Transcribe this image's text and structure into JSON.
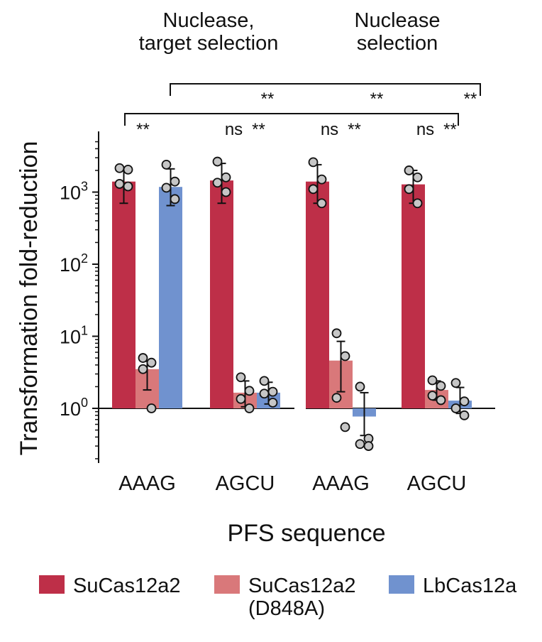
{
  "chart_data": {
    "type": "bar",
    "y_scale": "log",
    "ylim": [
      0.2,
      5000
    ],
    "ylabel": "Transformation fold-reduction",
    "xlabel": "PFS sequence",
    "yticks": [
      {
        "value": 1,
        "base": "10",
        "exp": "0"
      },
      {
        "value": 10,
        "base": "10",
        "exp": "1"
      },
      {
        "value": 100,
        "base": "10",
        "exp": "2"
      },
      {
        "value": 1000,
        "base": "10",
        "exp": "3"
      }
    ],
    "panels": [
      {
        "title_lines": [
          "Nuclease,",
          "target selection"
        ],
        "categories": [
          "AAAG",
          "AGCU"
        ]
      },
      {
        "title_lines": [
          "Nuclease",
          "selection"
        ],
        "categories": [
          "AAAG",
          "AGCU"
        ]
      }
    ],
    "colors": {
      "SuCas12a2": "#be2f48",
      "SuCas12a2 (D848A)": "#d9787a",
      "LbCas12a": "#7092cf"
    },
    "legend": [
      {
        "key": "SuCas12a2",
        "lines": [
          "SuCas12a2"
        ]
      },
      {
        "key": "SuCas12a2 (D848A)",
        "lines": [
          "SuCas12a2",
          "(D848A)"
        ]
      },
      {
        "key": "LbCas12a",
        "lines": [
          "LbCas12a"
        ]
      }
    ],
    "groups": [
      {
        "panel": 0,
        "category": "AAAG",
        "bars": [
          {
            "series": "SuCas12a2",
            "value": 1400,
            "err": [
              700,
              2000
            ],
            "points": [
              2150,
              2050,
              1300,
              1200
            ]
          },
          {
            "series": "SuCas12a2 (D848A)",
            "value": 3.5,
            "err": [
              1.8,
              4.5
            ],
            "points": [
              5.0,
              4.3,
              3.5,
              1.0
            ]
          },
          {
            "series": "LbCas12a",
            "value": 1180,
            "err": [
              650,
              2100
            ],
            "points": [
              2400,
              1400,
              1150,
              800
            ]
          }
        ],
        "sig": [
          "**"
        ]
      },
      {
        "panel": 0,
        "category": "AGCU",
        "bars": [
          {
            "series": "SuCas12a2",
            "value": 1450,
            "err": [
              700,
              2500
            ],
            "points": [
              2650,
              1600,
              1350,
              1000
            ]
          },
          {
            "series": "SuCas12a2 (D848A)",
            "value": 1.65,
            "err": [
              1.05,
              2.4
            ],
            "points": [
              2.7,
              1.75,
              1.35,
              1.0
            ]
          },
          {
            "series": "LbCas12a",
            "value": 1.65,
            "err": [
              1.15,
              2.3
            ],
            "points": [
              2.4,
              1.7,
              1.6,
              1.2
            ]
          }
        ],
        "sig": [
          "ns",
          "**"
        ]
      },
      {
        "panel": 1,
        "category": "AAAG",
        "bars": [
          {
            "series": "SuCas12a2",
            "value": 1400,
            "err": [
              700,
              2400
            ],
            "points": [
              2600,
              1500,
              1100,
              700
            ]
          },
          {
            "series": "SuCas12a2 (D848A)",
            "value": 4.6,
            "err": [
              1.7,
              8.5
            ],
            "points": [
              11.0,
              5.3,
              1.4,
              0.55
            ]
          },
          {
            "series": "LbCas12a",
            "value": 0.77,
            "err": [
              0.42,
              1.65
            ],
            "points": [
              2.0,
              0.38,
              0.32,
              0.3
            ]
          }
        ],
        "sig": [
          "ns",
          "**"
        ]
      },
      {
        "panel": 1,
        "category": "AGCU",
        "bars": [
          {
            "series": "SuCas12a2",
            "value": 1280,
            "err": [
              700,
              2000
            ],
            "points": [
              2000,
              1600,
              1100,
              700
            ]
          },
          {
            "series": "SuCas12a2 (D848A)",
            "value": 1.8,
            "err": [
              1.3,
              2.4
            ],
            "points": [
              2.45,
              2.05,
              1.5,
              1.3
            ]
          },
          {
            "series": "LbCas12a",
            "value": 1.28,
            "err": [
              0.85,
              1.95
            ],
            "points": [
              2.25,
              1.25,
              1.0,
              0.8
            ]
          }
        ],
        "sig": [
          "ns",
          "**"
        ]
      }
    ],
    "brackets": [
      {
        "from_group": 0,
        "label_positions": [
          "**",
          "**",
          "**"
        ]
      },
      {
        "from_group": 0,
        "label_positions": []
      }
    ],
    "bracket_labels": [
      "**",
      "**",
      "**"
    ]
  }
}
